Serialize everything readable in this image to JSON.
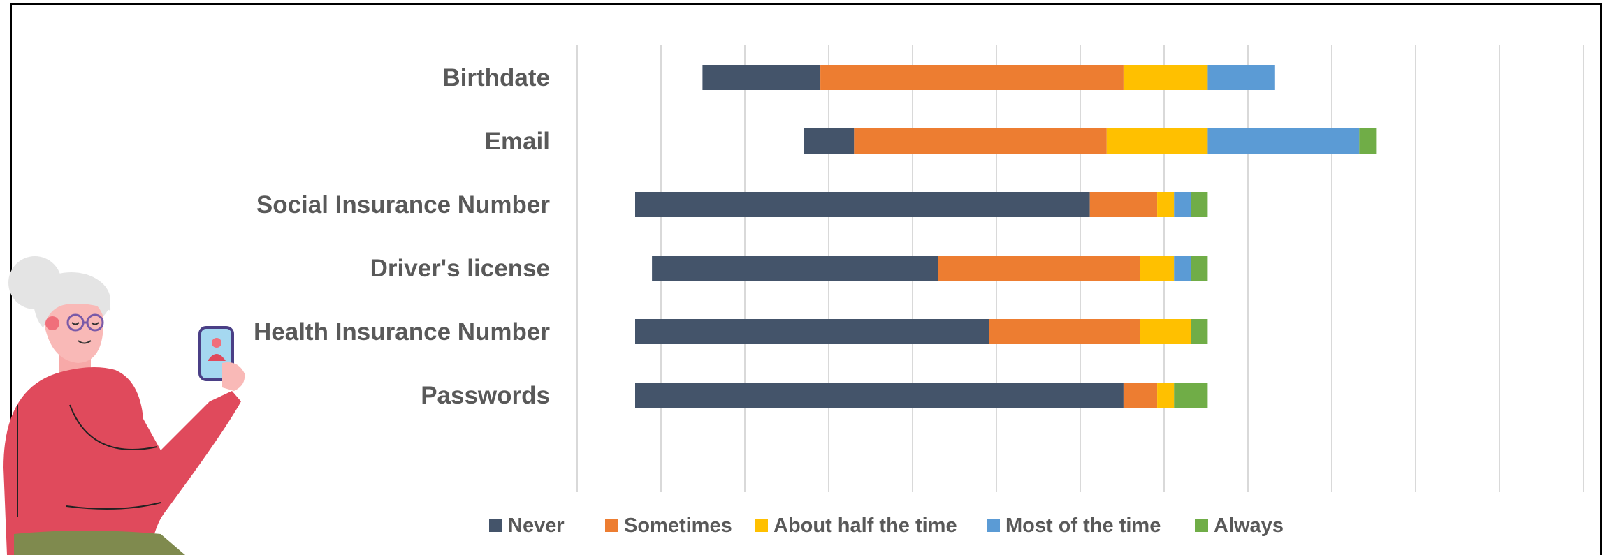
{
  "chart_data": {
    "type": "bar",
    "orientation": "horizontal",
    "stacked": true,
    "categories": [
      "Birthdate",
      "Email",
      "Social Insurance Number",
      "Driver's license",
      "Health Insurance Number",
      "Passwords"
    ],
    "series": [
      {
        "name": "Never",
        "color": "#44546A",
        "values": [
          7,
          3,
          27,
          17,
          21,
          29
        ]
      },
      {
        "name": "Sometimes",
        "color": "#ED7D31",
        "values": [
          18,
          15,
          4,
          12,
          9,
          2
        ]
      },
      {
        "name": "About half the time",
        "color": "#FFC000",
        "values": [
          5,
          6,
          1,
          2,
          3,
          1
        ]
      },
      {
        "name": "Most of the time",
        "color": "#5B9BD5",
        "values": [
          4,
          9,
          1,
          1,
          0,
          0
        ]
      },
      {
        "name": "Always",
        "color": "#70AD47",
        "values": [
          0,
          1,
          1,
          1,
          1,
          2
        ]
      }
    ],
    "grid": true,
    "legend_position": "bottom"
  }
}
